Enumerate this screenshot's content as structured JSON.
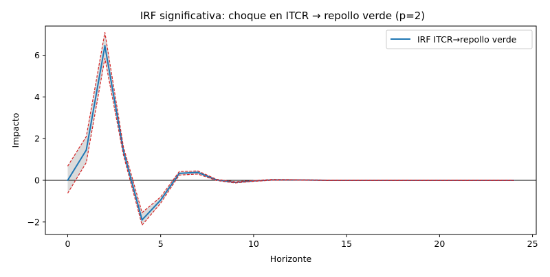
{
  "chart_data": {
    "type": "line",
    "title": "IRF significativa: choque en ITCR → repollo verde (p=2)",
    "xlabel": "Horizonte",
    "ylabel": "Impacto",
    "xlim": [
      -1.2,
      25.2
    ],
    "ylim": [
      -2.6,
      7.4
    ],
    "xticks": [
      0,
      5,
      10,
      15,
      20,
      25
    ],
    "yticks": [
      -2,
      0,
      2,
      4,
      6
    ],
    "grid": false,
    "legend_position": "top-right",
    "zero_line": true,
    "x": [
      0,
      1,
      2,
      3,
      4,
      5,
      6,
      7,
      8,
      9,
      10,
      11,
      12,
      13,
      14,
      15,
      16,
      17,
      18,
      19,
      20,
      21,
      22,
      23,
      24
    ],
    "series": [
      {
        "name": "IRF ITCR→repollo verde",
        "color": "#1f77b4",
        "values": [
          0.0,
          1.45,
          6.45,
          1.4,
          -1.9,
          -0.95,
          0.33,
          0.38,
          0.02,
          -0.1,
          -0.03,
          0.02,
          0.02,
          0.01,
          0.0,
          0.0,
          0.0,
          0.0,
          0.0,
          0.0,
          0.0,
          0.0,
          0.0,
          0.0,
          0.0
        ]
      }
    ],
    "band": {
      "color": "#d62728",
      "fill": "#cccccc",
      "upper": [
        0.68,
        2.1,
        7.1,
        1.6,
        -1.55,
        -0.8,
        0.42,
        0.45,
        0.05,
        -0.07,
        -0.01,
        0.04,
        0.03,
        0.02,
        0.01,
        0.01,
        0.01,
        0.01,
        0.01,
        0.01,
        0.01,
        0.01,
        0.01,
        0.01,
        0.01
      ],
      "lower": [
        -0.62,
        0.85,
        5.85,
        1.2,
        -2.15,
        -1.1,
        0.25,
        0.3,
        -0.01,
        -0.13,
        -0.05,
        0.0,
        0.01,
        0.0,
        -0.01,
        -0.01,
        -0.01,
        -0.01,
        -0.01,
        -0.01,
        -0.01,
        -0.01,
        -0.01,
        -0.01,
        -0.01
      ]
    }
  }
}
